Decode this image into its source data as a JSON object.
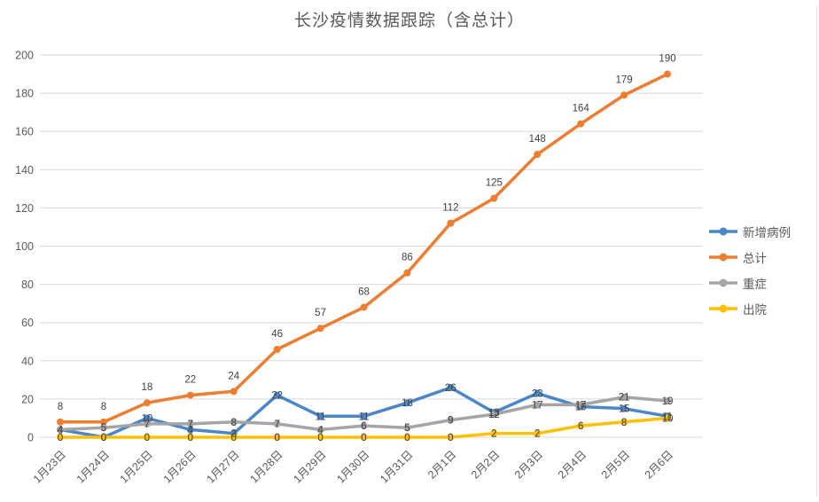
{
  "chart_data": {
    "type": "line",
    "title": "长沙疫情数据跟踪（含总计）",
    "categories": [
      "1月23日",
      "1月24日",
      "1月25日",
      "1月26日",
      "1月27日",
      "1月28日",
      "1月29日",
      "1月30日",
      "1月31日",
      "2月1日",
      "2月2日",
      "2月3日",
      "2月4日",
      "2月5日",
      "2月6日"
    ],
    "series": [
      {
        "name": "新增病例",
        "color": "#4A86C8",
        "label_position": "center",
        "values": [
          4,
          0,
          10,
          4,
          2,
          22,
          11,
          11,
          18,
          26,
          13,
          23,
          16,
          15,
          11
        ]
      },
      {
        "name": "总计",
        "color": "#ED7D31",
        "label_position": "above",
        "values": [
          8,
          8,
          18,
          22,
          24,
          46,
          57,
          68,
          86,
          112,
          125,
          148,
          164,
          179,
          190
        ]
      },
      {
        "name": "重症",
        "color": "#A5A5A5",
        "label_position": "center",
        "values": [
          4,
          5,
          7,
          7,
          8,
          7,
          4,
          6,
          5,
          9,
          12,
          17,
          17,
          21,
          19
        ]
      },
      {
        "name": "出院",
        "color": "#FFC000",
        "label_position": "center",
        "values": [
          0,
          0,
          0,
          0,
          0,
          0,
          0,
          0,
          0,
          0,
          2,
          2,
          6,
          8,
          10
        ]
      }
    ],
    "xlabel": "",
    "ylabel": "",
    "ylim": [
      0,
      200
    ],
    "ytick_step": 20,
    "yticks": [
      0,
      20,
      40,
      60,
      80,
      100,
      120,
      140,
      160,
      180,
      200
    ],
    "grid": true,
    "legend_position": "right",
    "axis_color": "#595959",
    "grid_color": "#D9D9D9",
    "label_color": "#404040"
  }
}
